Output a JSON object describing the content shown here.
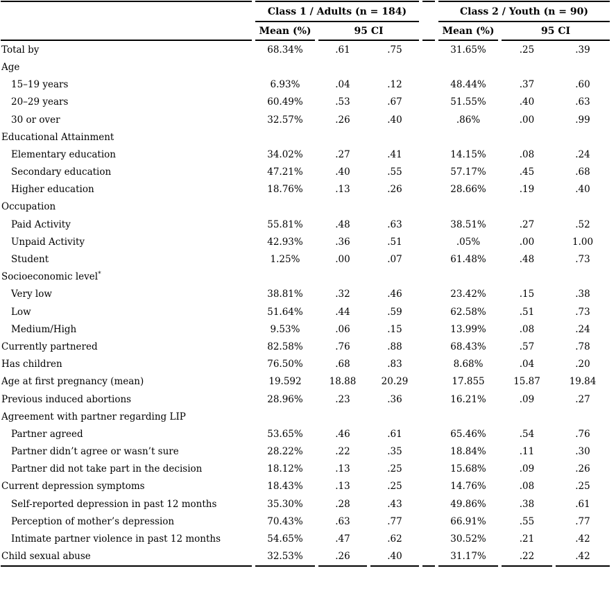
{
  "table": {
    "class1_header": "Class 1  /  Adults (n = 184)",
    "class2_header": "Class 2  /  Youth (n = 90)",
    "sub_headers": {
      "mean1": "Mean (%)",
      "ci1": "95 CI",
      "mean2": "Mean (%)",
      "ci2": "95 CI"
    },
    "rows": [
      {
        "label": "Total by",
        "indent": 0,
        "values": [
          "68.34%",
          ".61",
          ".75",
          "31.65%",
          ".25",
          ".39"
        ]
      },
      {
        "label": "Age",
        "indent": 0,
        "values": []
      },
      {
        "label": "15–19 years",
        "indent": 1,
        "values": [
          "6.93%",
          ".04",
          ".12",
          "48.44%",
          ".37",
          ".60"
        ]
      },
      {
        "label": "20–29 years",
        "indent": 1,
        "values": [
          "60.49%",
          ".53",
          ".67",
          "51.55%",
          ".40",
          ".63"
        ]
      },
      {
        "label": "30 or over",
        "indent": 1,
        "values": [
          "32.57%",
          ".26",
          ".40",
          ".86%",
          ".00",
          ".99"
        ]
      },
      {
        "label": "Educational Attainment",
        "indent": 0,
        "values": []
      },
      {
        "label": "Elementary education",
        "indent": 1,
        "values": [
          "34.02%",
          ".27",
          ".41",
          "14.15%",
          ".08",
          ".24"
        ]
      },
      {
        "label": "Secondary education",
        "indent": 1,
        "values": [
          "47.21%",
          ".40",
          ".55",
          "57.17%",
          ".45",
          ".68"
        ]
      },
      {
        "label": "Higher education",
        "indent": 1,
        "values": [
          "18.76%",
          ".13",
          ".26",
          "28.66%",
          ".19",
          ".40"
        ]
      },
      {
        "label": "Occupation",
        "indent": 0,
        "values": []
      },
      {
        "label": "Paid Activity",
        "indent": 1,
        "values": [
          "55.81%",
          ".48",
          ".63",
          "38.51%",
          ".27",
          ".52"
        ]
      },
      {
        "label": "Unpaid Activity",
        "indent": 1,
        "values": [
          "42.93%",
          ".36",
          ".51",
          ".05%",
          ".00",
          "1.00"
        ]
      },
      {
        "label": "Student",
        "indent": 1,
        "values": [
          "1.25%",
          ".00",
          ".07",
          "61.48%",
          ".48",
          ".73"
        ]
      },
      {
        "label": "Socioeconomic level",
        "sup": "*",
        "indent": 0,
        "values": []
      },
      {
        "label": "Very low",
        "indent": 1,
        "values": [
          "38.81%",
          ".32",
          ".46",
          "23.42%",
          ".15",
          ".38"
        ]
      },
      {
        "label": "Low",
        "indent": 1,
        "values": [
          "51.64%",
          ".44",
          ".59",
          "62.58%",
          ".51",
          ".73"
        ]
      },
      {
        "label": "Medium/High",
        "indent": 1,
        "values": [
          "9.53%",
          ".06",
          ".15",
          "13.99%",
          ".08",
          ".24"
        ]
      },
      {
        "label": "Currently partnered",
        "indent": 0,
        "values": [
          "82.58%",
          ".76",
          ".88",
          "68.43%",
          ".57",
          ".78"
        ]
      },
      {
        "label": "Has children",
        "indent": 0,
        "values": [
          "76.50%",
          ".68",
          ".83",
          "8.68%",
          ".04",
          ".20"
        ]
      },
      {
        "label": "Age at first pregnancy (mean)",
        "indent": 0,
        "values": [
          "19.592",
          "18.88",
          "20.29",
          "17.855",
          "15.87",
          "19.84"
        ]
      },
      {
        "label": "Previous induced abortions",
        "indent": 0,
        "values": [
          "28.96%",
          ".23",
          ".36",
          "16.21%",
          ".09",
          ".27"
        ]
      },
      {
        "label": "Agreement with partner regarding LIP",
        "indent": 0,
        "values": []
      },
      {
        "label": "Partner agreed",
        "indent": 1,
        "values": [
          "53.65%",
          ".46",
          ".61",
          "65.46%",
          ".54",
          ".76"
        ]
      },
      {
        "label": "Partner didn’t agree or wasn’t sure",
        "indent": 1,
        "values": [
          "28.22%",
          ".22",
          ".35",
          "18.84%",
          ".11",
          ".30"
        ]
      },
      {
        "label": "Partner did not take part in the decision",
        "indent": 1,
        "values": [
          "18.12%",
          ".13",
          ".25",
          "15.68%",
          ".09",
          ".26"
        ]
      },
      {
        "label": "Current depression symptoms",
        "indent": 0,
        "values": [
          "18.43%",
          ".13",
          ".25",
          "14.76%",
          ".08",
          ".25"
        ]
      },
      {
        "label": "Self-reported depression in past 12 months",
        "indent": 1,
        "values": [
          "35.30%",
          ".28",
          ".43",
          "49.86%",
          ".38",
          ".61"
        ]
      },
      {
        "label": "Perception of mother’s depression",
        "indent": 1,
        "values": [
          "70.43%",
          ".63",
          ".77",
          "66.91%",
          ".55",
          ".77"
        ]
      },
      {
        "label": "Intimate partner violence in past 12 months",
        "indent": 1,
        "values": [
          "54.65%",
          ".47",
          ".62",
          "30.52%",
          ".21",
          ".42"
        ]
      },
      {
        "label": "Child sexual abuse",
        "indent": 0,
        "values": [
          "32.53%",
          ".26",
          ".40",
          "31.17%",
          ".22",
          ".42"
        ]
      }
    ]
  }
}
